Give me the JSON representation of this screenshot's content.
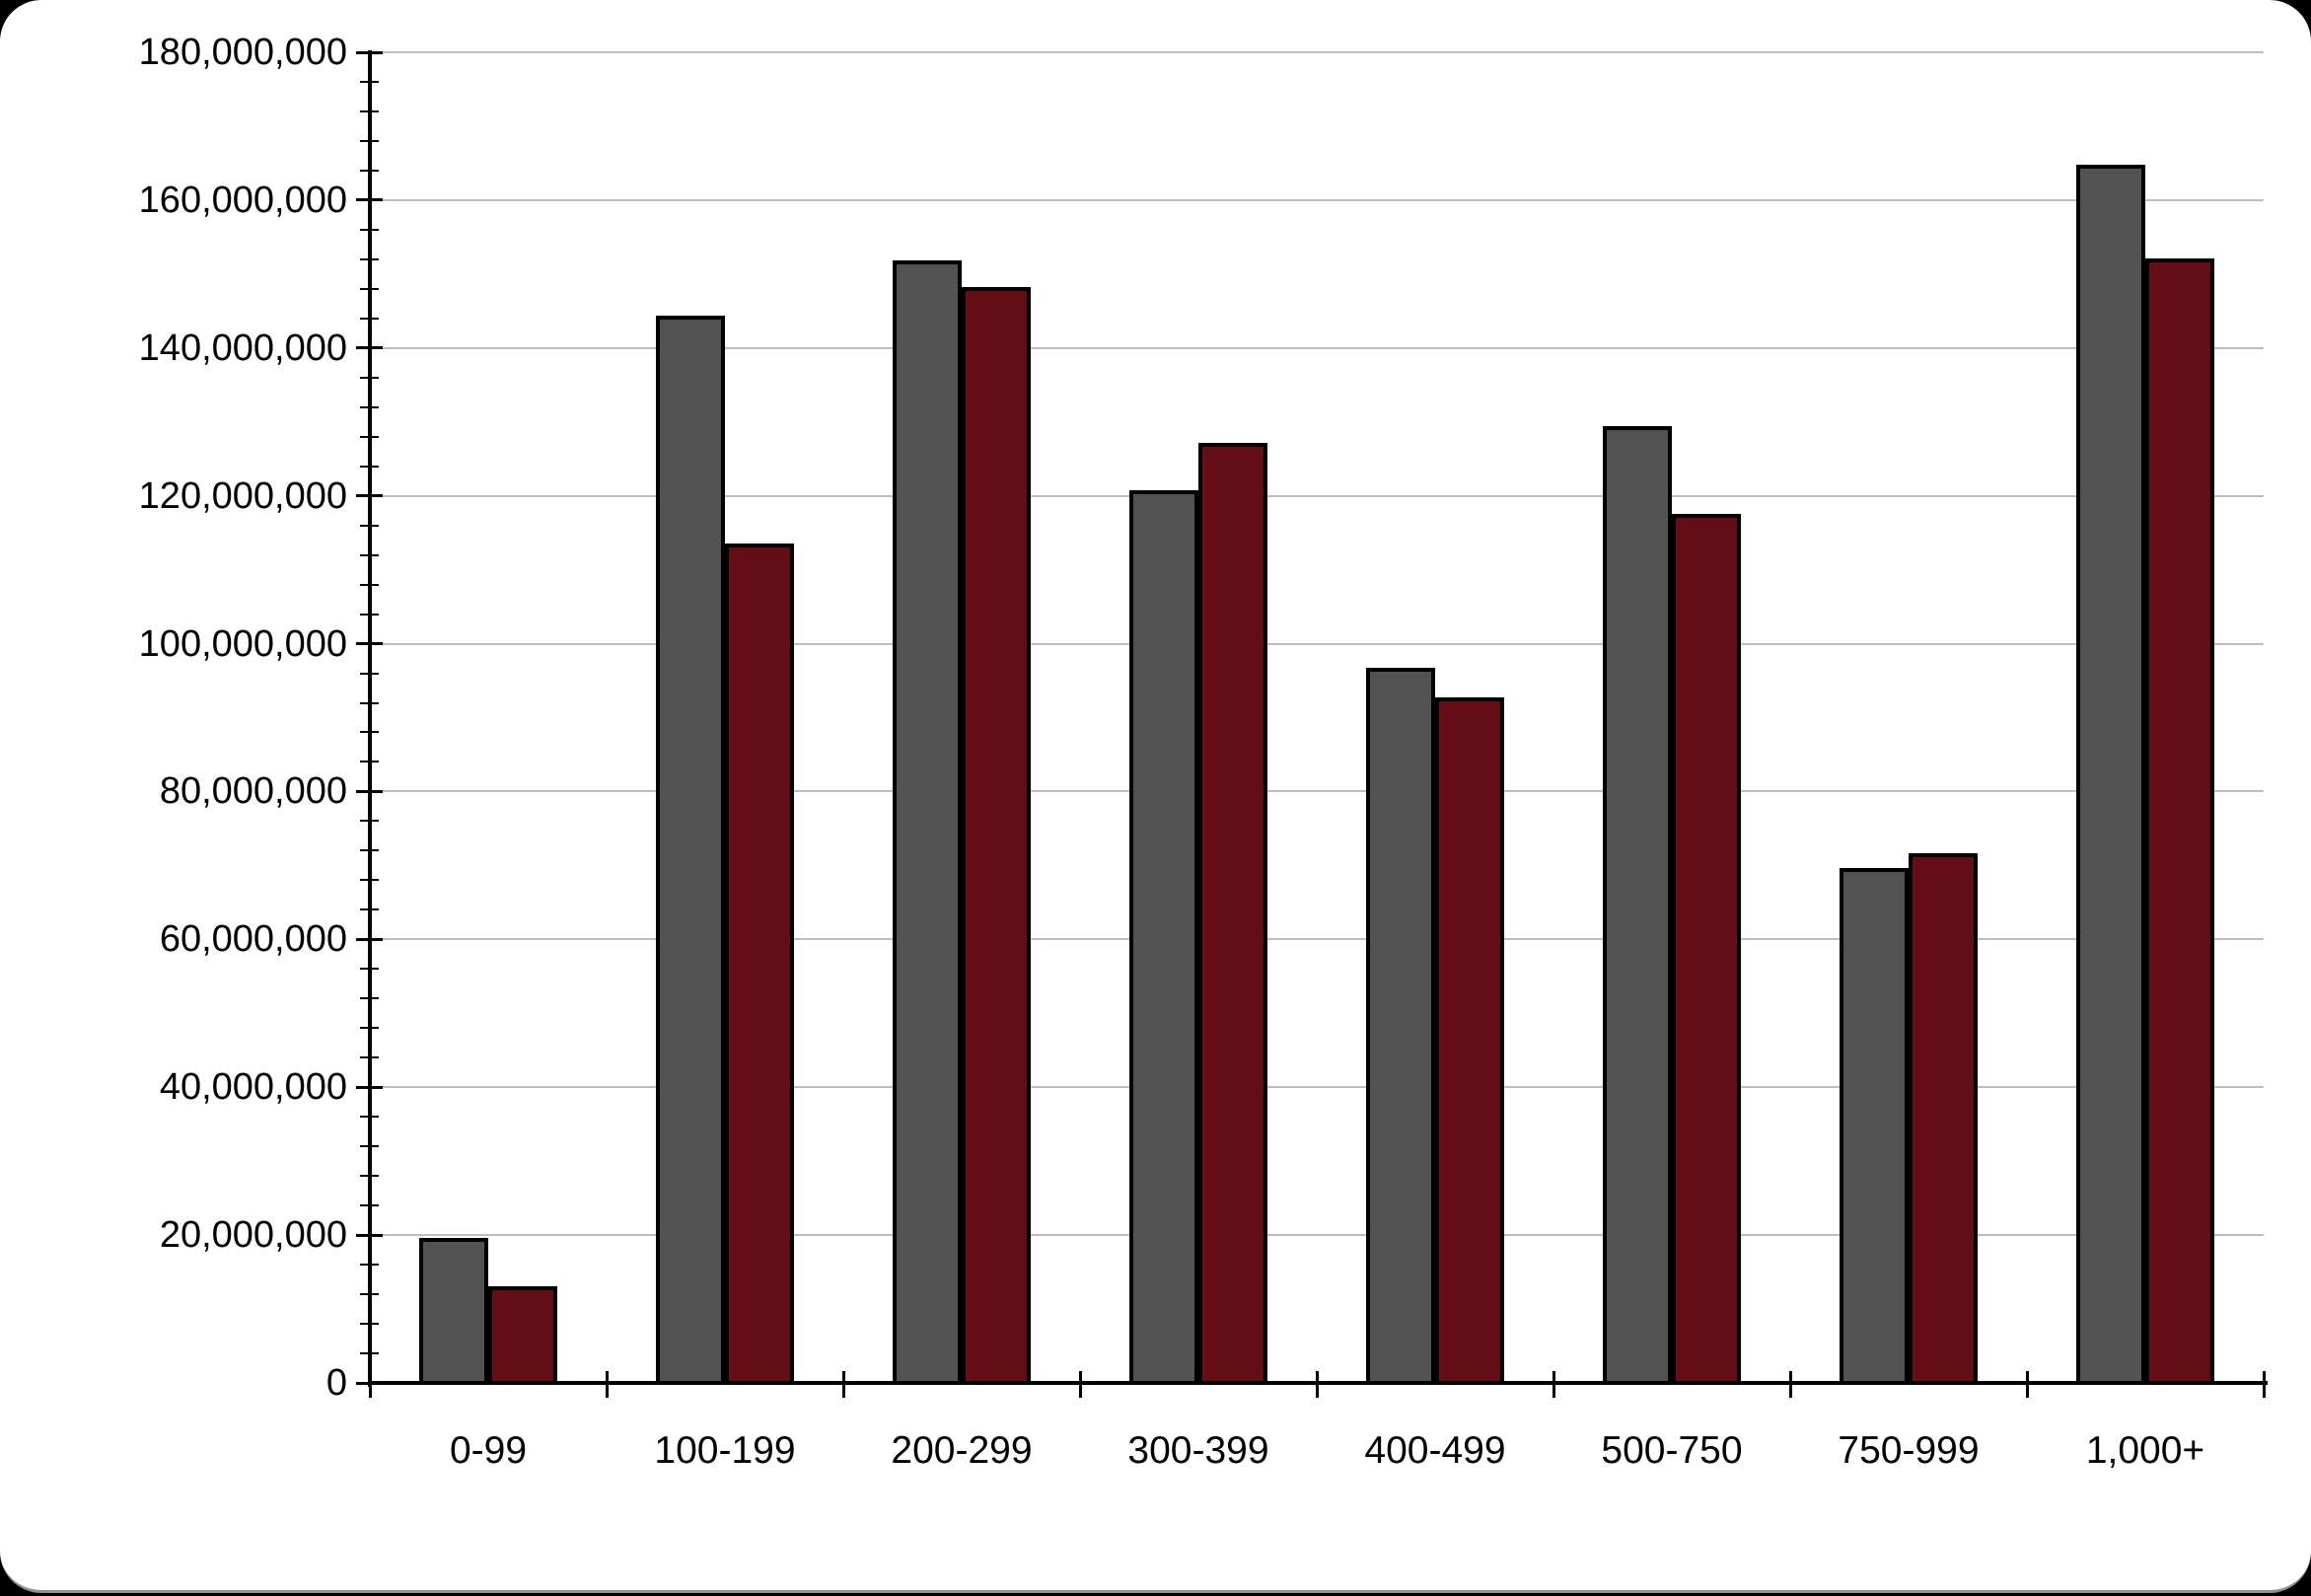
{
  "frame": {
    "background_color": "#000000",
    "canvas_color": "#ffffff"
  },
  "chart_data": {
    "type": "bar",
    "title": "",
    "legend": {
      "show": false
    },
    "grid": {
      "show": true,
      "color": "#bdbdbd"
    },
    "categories": [
      "0-99",
      "100-199",
      "200-299",
      "300-399",
      "400-499",
      "500-750",
      "750-999",
      "1,000+"
    ],
    "series": [
      {
        "name": "gray",
        "color": "#525252",
        "values": [
          19600000,
          144400000,
          151800000,
          120700000,
          96700000,
          129400000,
          69600000,
          164800000
        ]
      },
      {
        "name": "dark-red",
        "color": "#630e15",
        "values": [
          13100000,
          113600000,
          148300000,
          127200000,
          92700000,
          117600000,
          71700000,
          152100000
        ]
      }
    ],
    "x_axis": {
      "tick_labels": [
        "0-99",
        "100-199",
        "200-299",
        "300-399",
        "400-499",
        "500-750",
        "750-999",
        "1,000+"
      ]
    },
    "y_axis": {
      "min": 0,
      "max": 180000000,
      "major_step": 20000000,
      "minor_step": 4000000,
      "tick_labels": [
        "0",
        "20,000,000",
        "40,000,000",
        "60,000,000",
        "80,000,000",
        "100,000,000",
        "120,000,000",
        "140,000,000",
        "160,000,000",
        "180,000,000"
      ]
    }
  }
}
